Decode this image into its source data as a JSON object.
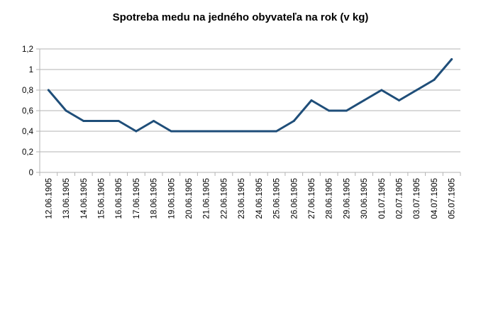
{
  "chart_data": {
    "type": "line",
    "title": "Spotreba medu na jedného obyvateľa na rok (v kg)",
    "xlabel": "",
    "ylabel": "",
    "ylim": [
      0,
      1.2
    ],
    "yticks": [
      "0",
      "0,2",
      "0,4",
      "0,6",
      "0,8",
      "1",
      "1,2"
    ],
    "grid": true,
    "legend": "none",
    "line_color": "#1F4E79",
    "categories": [
      "12.06.1905",
      "13.06.1905",
      "14.06.1905",
      "15.06.1905",
      "16.06.1905",
      "17.06.1905",
      "18.06.1905",
      "19.06.1905",
      "20.06.1905",
      "21.06.1905",
      "22.06.1905",
      "23.06.1905",
      "24.06.1905",
      "25.06.1905",
      "26.06.1905",
      "27.06.1905",
      "28.06.1905",
      "29.06.1905",
      "30.06.1905",
      "01.07.1905",
      "02.07.1905",
      "03.07.1905",
      "04.07.1905",
      "05.07.1905"
    ],
    "values": [
      0.8,
      0.6,
      0.5,
      0.5,
      0.5,
      0.4,
      0.5,
      0.4,
      0.4,
      0.4,
      0.4,
      0.4,
      0.4,
      0.4,
      0.5,
      0.7,
      0.6,
      0.6,
      0.7,
      0.8,
      0.7,
      0.8,
      0.9,
      1.1
    ]
  }
}
